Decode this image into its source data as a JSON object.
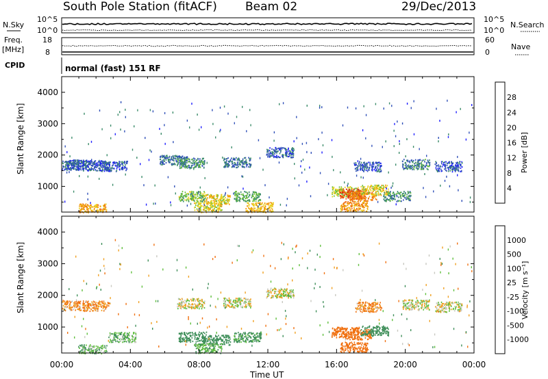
{
  "header": {
    "station": "South Pole Station (fitACF)",
    "beam": "Beam 02",
    "date": "29/Dec/2013"
  },
  "strips": {
    "sky": {
      "label": "N.Sky",
      "left_ticks": [
        "10^5",
        "10^0"
      ],
      "right_label": "N.Search",
      "right_ticks": [
        "10^5",
        "10^0"
      ]
    },
    "freq": {
      "label_line1": "Freq.",
      "label_line2": "[MHz]",
      "left_ticks": [
        "18",
        "8"
      ],
      "right_label": "Nave",
      "right_ticks": [
        "60",
        "0"
      ]
    },
    "cpid": {
      "label": "CPID",
      "mode_text": "normal (fast) 151 RF"
    }
  },
  "colorbars": {
    "power": {
      "label": "Power [dB]",
      "ticks": [
        "4",
        "8",
        "12",
        "16",
        "20",
        "24",
        "28"
      ],
      "colors": [
        "#1f1fff",
        "#3050b8",
        "#3c8c6a",
        "#6bbf3c",
        "#e8d21e",
        "#f39a0c",
        "#ef6a12",
        "#e02a10"
      ]
    },
    "velocity": {
      "label": "Velocity [m s⁻¹]",
      "ticks": [
        "1000",
        "500",
        "100",
        "25",
        "-25",
        "-100",
        "-500",
        "-1000"
      ],
      "colors": [
        "#1f2fc0",
        "#2f6fae",
        "#3f8f5a",
        "#5fbf3c",
        "#c8c8c0",
        "#f0a020",
        "#f07010",
        "#e83a10",
        "#e01010"
      ]
    }
  },
  "chart_data": [
    {
      "type": "heatmap",
      "title": "",
      "xlabel": "",
      "ylabel": "Slant Range [km]",
      "xlim": [
        "00:00",
        "00:00"
      ],
      "ylim": [
        180,
        4500
      ],
      "y_ticks": [
        1000,
        2000,
        3000,
        4000
      ],
      "x_ticks": [
        "00:00",
        "04:00",
        "08:00",
        "12:00",
        "16:00",
        "20:00",
        "00:00"
      ],
      "colorbar": "Power [dB]",
      "cells": [
        {
          "t": 0.3,
          "r": 1700,
          "v": 6
        },
        {
          "t": 1.0,
          "r": 1700,
          "v": 7
        },
        {
          "t": 2.0,
          "r": 1680,
          "v": 6
        },
        {
          "t": 3.0,
          "r": 1660,
          "v": 6
        },
        {
          "t": 6.5,
          "r": 1850,
          "v": 8
        },
        {
          "t": 7.5,
          "r": 1760,
          "v": 10
        },
        {
          "t": 10.2,
          "r": 1780,
          "v": 8
        },
        {
          "t": 12.7,
          "r": 2100,
          "v": 7
        },
        {
          "t": 17.8,
          "r": 1650,
          "v": 6
        },
        {
          "t": 20.6,
          "r": 1720,
          "v": 9
        },
        {
          "t": 22.5,
          "r": 1650,
          "v": 6
        },
        {
          "t": 7.6,
          "r": 700,
          "v": 14
        },
        {
          "t": 9.0,
          "r": 600,
          "v": 18
        },
        {
          "t": 10.8,
          "r": 700,
          "v": 12
        },
        {
          "t": 16.5,
          "r": 850,
          "v": 16
        },
        {
          "t": 16.9,
          "r": 780,
          "v": 28
        },
        {
          "t": 17.5,
          "r": 700,
          "v": 24
        },
        {
          "t": 18.2,
          "r": 900,
          "v": 18
        },
        {
          "t": 19.5,
          "r": 700,
          "v": 10
        },
        {
          "t": 1.8,
          "r": 300,
          "v": 22
        },
        {
          "t": 8.5,
          "r": 350,
          "v": 18
        },
        {
          "t": 11.5,
          "r": 350,
          "v": 20
        },
        {
          "t": 17.0,
          "r": 380,
          "v": 22
        }
      ]
    },
    {
      "type": "heatmap",
      "title": "",
      "xlabel": "Time UT",
      "ylabel": "Slant Range [km]",
      "xlim": [
        "00:00",
        "00:00"
      ],
      "ylim": [
        180,
        4500
      ],
      "y_ticks": [
        1000,
        2000,
        3000,
        4000
      ],
      "x_ticks": [
        "00:00",
        "04:00",
        "08:00",
        "12:00",
        "16:00",
        "20:00",
        "00:00"
      ],
      "colorbar": "Velocity [m s⁻¹]",
      "cells": [
        {
          "t": 0.3,
          "r": 1700,
          "v": -100
        },
        {
          "t": 2.0,
          "r": 1680,
          "v": -100
        },
        {
          "t": 7.5,
          "r": 1760,
          "v": 0
        },
        {
          "t": 10.2,
          "r": 1780,
          "v": 0
        },
        {
          "t": 12.7,
          "r": 2100,
          "v": 0
        },
        {
          "t": 17.8,
          "r": 1650,
          "v": -100
        },
        {
          "t": 20.6,
          "r": 1720,
          "v": 0
        },
        {
          "t": 22.5,
          "r": 1650,
          "v": 0
        },
        {
          "t": 7.6,
          "r": 700,
          "v": 200
        },
        {
          "t": 9.0,
          "r": 600,
          "v": 200
        },
        {
          "t": 10.8,
          "r": 700,
          "v": 150
        },
        {
          "t": 16.5,
          "r": 850,
          "v": -300
        },
        {
          "t": 17.2,
          "r": 780,
          "v": -400
        },
        {
          "t": 18.2,
          "r": 900,
          "v": 200
        },
        {
          "t": 3.5,
          "r": 700,
          "v": 80
        },
        {
          "t": 1.8,
          "r": 300,
          "v": 80
        },
        {
          "t": 8.5,
          "r": 350,
          "v": 80
        },
        {
          "t": 17.0,
          "r": 380,
          "v": -300
        }
      ]
    }
  ]
}
